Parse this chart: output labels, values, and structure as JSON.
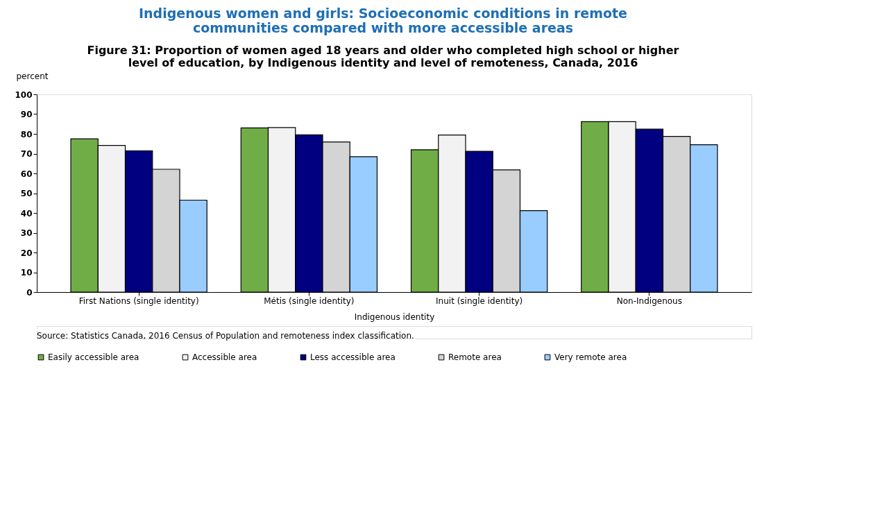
{
  "chart_data": {
    "type": "bar",
    "title": "Indigenous women and girls: Socioeconomic conditions in remote communities compared with more accessible areas",
    "subtitle": "Figure 31: Proportion of women aged 18 years and older who completed high school or higher level of education, by Indigenous identity and level of remoteness, Canada, 2016",
    "xlabel": "Indigenous identity",
    "ylabel": "percent",
    "categories": [
      "First Nations (single identity)",
      "Métis (single identity)",
      "Inuit (single identity)",
      "Non-Indigenous"
    ],
    "series": [
      {
        "name": "Easily accessible area",
        "color": "#70ad47",
        "values": [
          77.5,
          83.0,
          72.0,
          86.2
        ]
      },
      {
        "name": "Accessible area",
        "color": "#f2f2f2",
        "values": [
          74.2,
          83.2,
          79.4,
          86.2
        ]
      },
      {
        "name": "Less accessible area",
        "color": "#000080",
        "values": [
          71.5,
          79.5,
          71.2,
          82.4
        ]
      },
      {
        "name": "Remote area",
        "color": "#d4d4d4",
        "values": [
          62.1,
          75.9,
          61.8,
          78.7
        ]
      },
      {
        "name": "Very remote area",
        "color": "#99ccff",
        "values": [
          46.5,
          68.5,
          41.2,
          74.5
        ]
      }
    ],
    "ylim": [
      0,
      100
    ],
    "yticks": [
      0,
      10,
      20,
      30,
      40,
      50,
      60,
      70,
      80,
      90,
      100
    ],
    "grid": false,
    "legend": "bottom",
    "annotations": [
      "Source: Statistics Canada, 2016 Census of Population and remoteness index classification."
    ]
  }
}
